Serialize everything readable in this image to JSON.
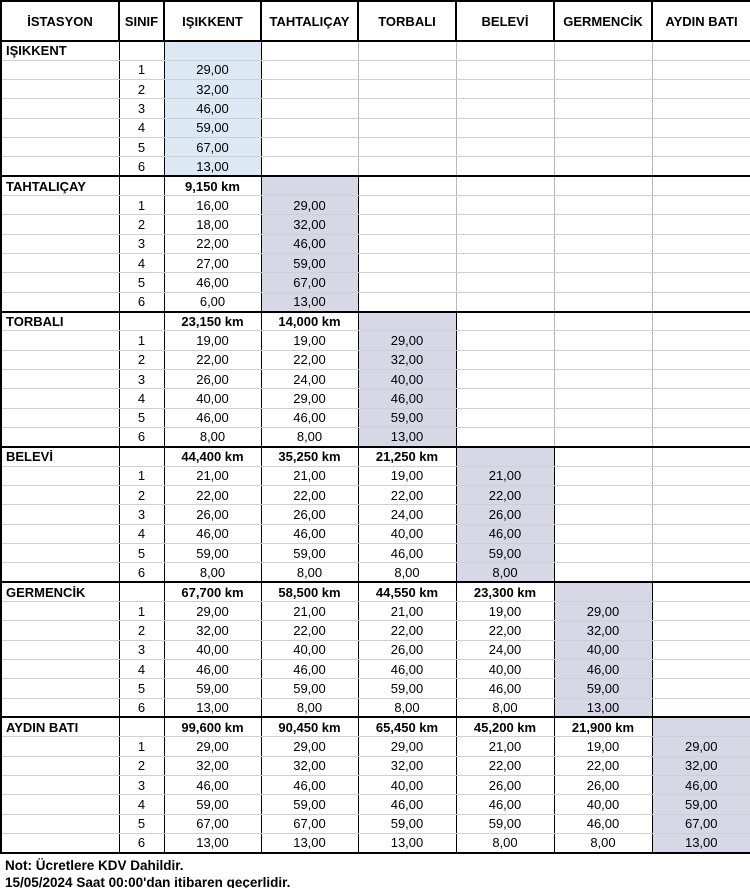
{
  "table": {
    "columns": [
      "İSTASYON",
      "SINIF",
      "IŞIKKENT",
      "TAHTALIÇAY",
      "TORBALI",
      "BELEVİ",
      "GERMENCİK",
      "AYDIN BATI"
    ],
    "groups": [
      {
        "station": "IŞIKKENT",
        "km": [],
        "classes": [
          {
            "label": "1",
            "values": [
              "29,00"
            ]
          },
          {
            "label": "2",
            "values": [
              "32,00"
            ]
          },
          {
            "label": "3",
            "values": [
              "46,00"
            ]
          },
          {
            "label": "4",
            "values": [
              "59,00"
            ]
          },
          {
            "label": "5",
            "values": [
              "67,00"
            ]
          },
          {
            "label": "6",
            "values": [
              "13,00"
            ]
          }
        ]
      },
      {
        "station": "TAHTALIÇAY",
        "km": [
          "9,150 km"
        ],
        "classes": [
          {
            "label": "1",
            "values": [
              "16,00",
              "29,00"
            ]
          },
          {
            "label": "2",
            "values": [
              "18,00",
              "32,00"
            ]
          },
          {
            "label": "3",
            "values": [
              "22,00",
              "46,00"
            ]
          },
          {
            "label": "4",
            "values": [
              "27,00",
              "59,00"
            ]
          },
          {
            "label": "5",
            "values": [
              "46,00",
              "67,00"
            ]
          },
          {
            "label": "6",
            "values": [
              "6,00",
              "13,00"
            ]
          }
        ]
      },
      {
        "station": "TORBALI",
        "km": [
          "23,150 km",
          "14,000 km"
        ],
        "classes": [
          {
            "label": "1",
            "values": [
              "19,00",
              "19,00",
              "29,00"
            ]
          },
          {
            "label": "2",
            "values": [
              "22,00",
              "22,00",
              "32,00"
            ]
          },
          {
            "label": "3",
            "values": [
              "26,00",
              "24,00",
              "40,00"
            ]
          },
          {
            "label": "4",
            "values": [
              "40,00",
              "29,00",
              "46,00"
            ]
          },
          {
            "label": "5",
            "values": [
              "46,00",
              "46,00",
              "59,00"
            ]
          },
          {
            "label": "6",
            "values": [
              "8,00",
              "8,00",
              "13,00"
            ]
          }
        ]
      },
      {
        "station": "BELEVİ",
        "km": [
          "44,400 km",
          "35,250 km",
          "21,250 km"
        ],
        "classes": [
          {
            "label": "1",
            "values": [
              "21,00",
              "21,00",
              "19,00",
              "21,00"
            ]
          },
          {
            "label": "2",
            "values": [
              "22,00",
              "22,00",
              "22,00",
              "22,00"
            ]
          },
          {
            "label": "3",
            "values": [
              "26,00",
              "26,00",
              "24,00",
              "26,00"
            ]
          },
          {
            "label": "4",
            "values": [
              "46,00",
              "46,00",
              "40,00",
              "46,00"
            ]
          },
          {
            "label": "5",
            "values": [
              "59,00",
              "59,00",
              "46,00",
              "59,00"
            ]
          },
          {
            "label": "6",
            "values": [
              "8,00",
              "8,00",
              "8,00",
              "8,00"
            ]
          }
        ]
      },
      {
        "station": "GERMENCİK",
        "km": [
          "67,700 km",
          "58,500 km",
          "44,550 km",
          "23,300 km"
        ],
        "classes": [
          {
            "label": "1",
            "values": [
              "29,00",
              "21,00",
              "21,00",
              "19,00",
              "29,00"
            ]
          },
          {
            "label": "2",
            "values": [
              "32,00",
              "22,00",
              "22,00",
              "22,00",
              "32,00"
            ]
          },
          {
            "label": "3",
            "values": [
              "40,00",
              "40,00",
              "26,00",
              "24,00",
              "40,00"
            ]
          },
          {
            "label": "4",
            "values": [
              "46,00",
              "46,00",
              "46,00",
              "40,00",
              "46,00"
            ]
          },
          {
            "label": "5",
            "values": [
              "59,00",
              "59,00",
              "59,00",
              "46,00",
              "59,00"
            ]
          },
          {
            "label": "6",
            "values": [
              "13,00",
              "8,00",
              "8,00",
              "8,00",
              "13,00"
            ]
          }
        ]
      },
      {
        "station": "AYDIN BATI",
        "km": [
          "99,600 km",
          "90,450 km",
          "65,450 km",
          "45,200 km",
          "21,900 km"
        ],
        "classes": [
          {
            "label": "1",
            "values": [
              "29,00",
              "29,00",
              "29,00",
              "21,00",
              "19,00",
              "29,00"
            ]
          },
          {
            "label": "2",
            "values": [
              "32,00",
              "32,00",
              "32,00",
              "22,00",
              "22,00",
              "32,00"
            ]
          },
          {
            "label": "3",
            "values": [
              "46,00",
              "46,00",
              "40,00",
              "26,00",
              "26,00",
              "46,00"
            ]
          },
          {
            "label": "4",
            "values": [
              "59,00",
              "59,00",
              "46,00",
              "46,00",
              "40,00",
              "59,00"
            ]
          },
          {
            "label": "5",
            "values": [
              "67,00",
              "67,00",
              "59,00",
              "59,00",
              "46,00",
              "67,00"
            ]
          },
          {
            "label": "6",
            "values": [
              "13,00",
              "13,00",
              "13,00",
              "8,00",
              "8,00",
              "13,00"
            ]
          }
        ]
      }
    ]
  },
  "notes": [
    "Not: Ücretlere KDV Dahildir.",
    "15/05/2024 Saat 00:00'dan itibaren geçerlidir."
  ],
  "colors": {
    "highlight_first_station": "#DCE8F4",
    "highlight_other_station": "#D7D8E5"
  }
}
